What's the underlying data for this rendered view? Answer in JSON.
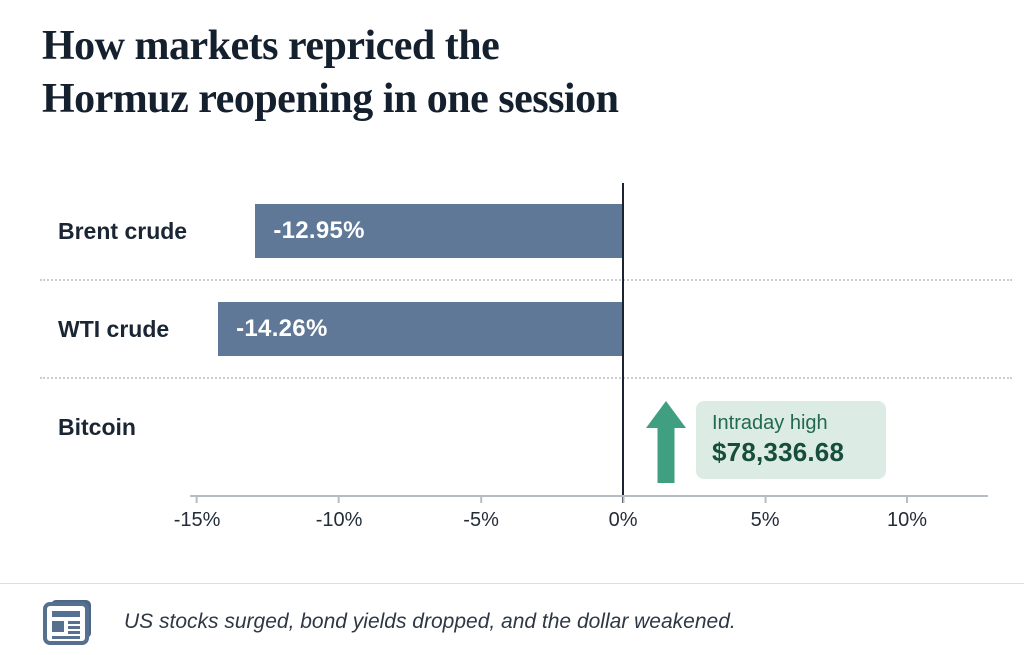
{
  "header": {
    "title_line1": "How markets repriced the",
    "title_line2": "Hormuz reopening in one session"
  },
  "chart_data": {
    "type": "bar",
    "orientation": "horizontal",
    "title": "How markets repriced the Hormuz reopening in one session",
    "categories": [
      "Brent crude",
      "WTI crude",
      "Bitcoin"
    ],
    "series": [
      {
        "name": "One-session price change (%)",
        "values": [
          -12.95,
          -14.26,
          null
        ]
      }
    ],
    "bar_labels": [
      "-12.95%",
      "-14.26%",
      ""
    ],
    "annotation": {
      "category": "Bitcoin",
      "icon": "up-arrow-icon",
      "label": "Intraday high",
      "value": "$78,336.68"
    },
    "xlabel": "",
    "ylabel": "",
    "xlim": [
      -15.25,
      12.85
    ],
    "x_ticks": [
      {
        "value": -15,
        "label": "-15%"
      },
      {
        "value": -10,
        "label": "-10%"
      },
      {
        "value": -5,
        "label": "-5%"
      },
      {
        "value": 0,
        "label": "0%"
      },
      {
        "value": 5,
        "label": "5%"
      },
      {
        "value": 10,
        "label": "10%"
      }
    ],
    "grid": false,
    "legend": false,
    "colors": {
      "bar": "#5f7897",
      "arrow": "#3f9f80",
      "badge_background": "#dcebe3",
      "badge_label_text": "#206952",
      "badge_value_text": "#164d3c",
      "title_text": "#14202e",
      "zero_line": "#1a2430",
      "axis_line": "#b6bdc6"
    }
  },
  "footer": {
    "note": "US stocks surged, bond yields dropped, and the dollar weakened."
  }
}
